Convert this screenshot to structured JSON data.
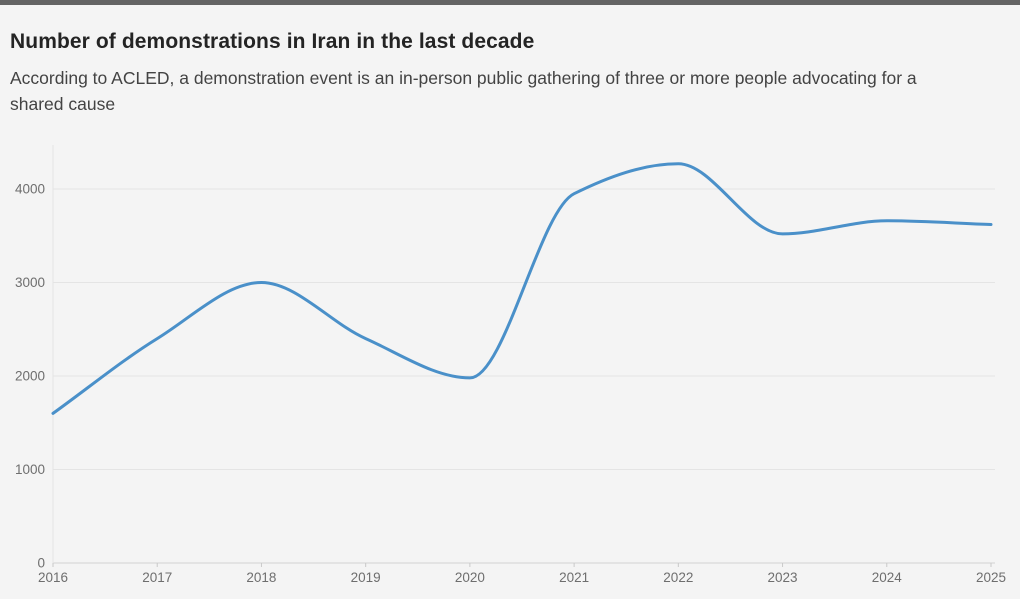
{
  "header": {
    "title": "Number of demonstrations in Iran in the last decade",
    "subtitle": "According to ACLED, a demonstration event is an in-person public gathering of three or more people advocating for a shared cause"
  },
  "chart_data": {
    "type": "line",
    "title": "Number of demonstrations in Iran in the last decade",
    "subtitle": "According to ACLED, a demonstration event is an in-person public gathering of three or more people advocating for a shared cause",
    "series": [
      {
        "name": "Demonstrations in Iran",
        "x": [
          2016,
          2017,
          2018,
          2019,
          2020,
          2021,
          2022,
          2023,
          2024,
          2025
        ],
        "values": [
          1600,
          2400,
          3000,
          2400,
          1980,
          3950,
          4270,
          3520,
          3660,
          3620
        ]
      }
    ],
    "xticklabels": [
      "2016",
      "2017",
      "2018",
      "2019",
      "2020",
      "2021",
      "2022",
      "2023",
      "2024",
      "2025"
    ],
    "yticks": [
      0,
      1000,
      2000,
      3000,
      4000
    ],
    "yticklabels": [
      "0",
      "1000",
      "2000",
      "3000",
      "4000"
    ],
    "xlim": [
      2016,
      2025
    ],
    "ylim": [
      0,
      4470
    ],
    "xlabel": "",
    "ylabel": "",
    "grid": "horizontal",
    "legend_position": "none",
    "curve": "monotone",
    "colors": {
      "line": "#4a90c9",
      "gridline": "#e4e4e4",
      "baseline": "#d2d2d2",
      "tick": "#c9c9c9",
      "tick_label": "#6e6e6e",
      "accent_bar": "#646464",
      "background": "#f4f4f4"
    }
  }
}
